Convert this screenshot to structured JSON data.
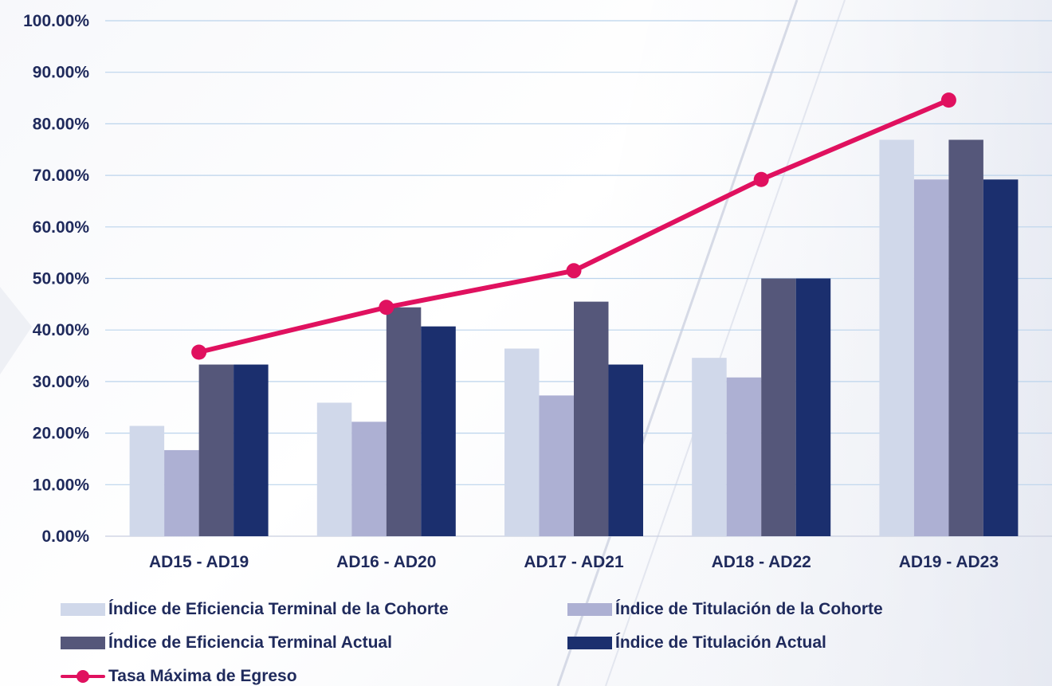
{
  "chart_data": {
    "type": "bar",
    "categories": [
      "AD15 - AD19",
      "AD16 - AD20",
      "AD17 - AD21",
      "AD18 - AD22",
      "AD19 - AD23"
    ],
    "y_tick_labels": [
      "0.00%",
      "10.00%",
      "20.00%",
      "30.00%",
      "40.00%",
      "50.00%",
      "60.00%",
      "70.00%",
      "80.00%",
      "90.00%",
      "100.00%"
    ],
    "ylim": [
      0,
      100
    ],
    "y_unit": "%",
    "grid": true,
    "legend_position": "bottom",
    "series": [
      {
        "name": "Índice de Eficiencia Terminal de la Cohorte",
        "type": "bar",
        "color": "#d0d8ea",
        "values": [
          21.4,
          25.9,
          36.4,
          34.6,
          76.9
        ]
      },
      {
        "name": "Índice de Titulación de la Cohorte",
        "type": "bar",
        "color": "#adb0d3",
        "values": [
          16.7,
          22.2,
          27.3,
          30.8,
          69.2
        ]
      },
      {
        "name": "Índice de Eficiencia Terminal Actual",
        "type": "bar",
        "color": "#55577a",
        "values": [
          33.3,
          44.4,
          45.5,
          50.0,
          76.9
        ]
      },
      {
        "name": "Índice de Titulación Actual",
        "type": "bar",
        "color": "#1b2f6e",
        "values": [
          33.3,
          40.7,
          33.3,
          50.0,
          69.2
        ]
      },
      {
        "name": "Tasa Máxima de Egreso",
        "type": "line",
        "color": "#e0115f",
        "values": [
          35.7,
          44.4,
          51.5,
          69.2,
          84.6
        ]
      }
    ]
  }
}
